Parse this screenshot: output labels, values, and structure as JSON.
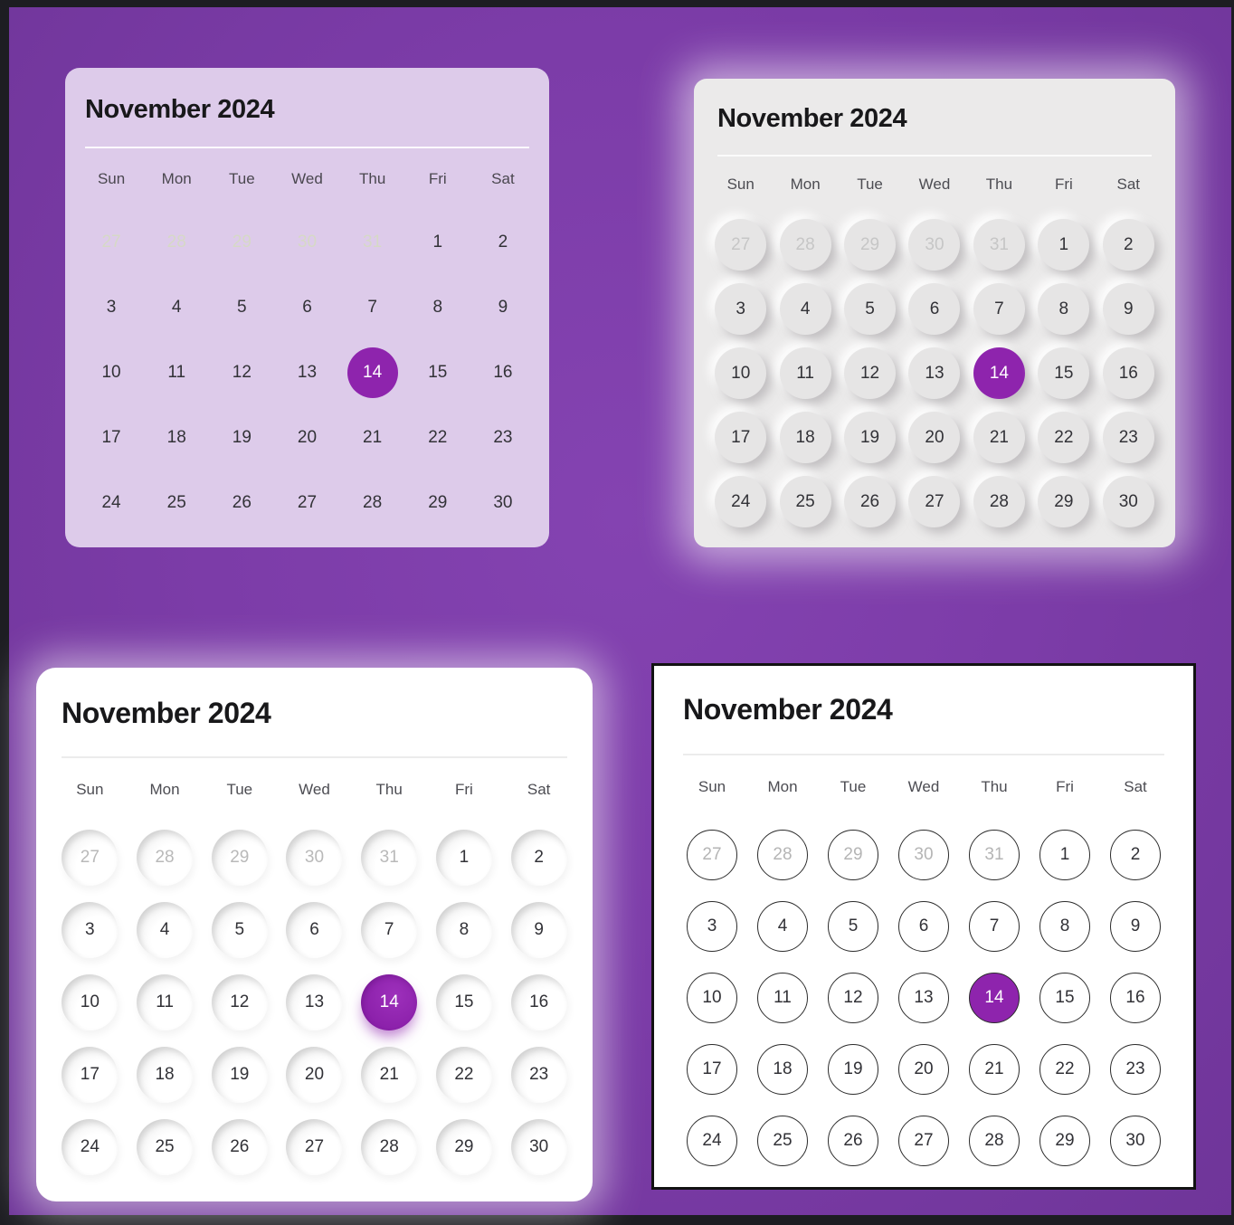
{
  "page": {
    "frame_color": "#1d1d22",
    "background_center": "#8443b1",
    "background_edge": "#6f3599",
    "accent_purple": "#8e24ad"
  },
  "calendar": {
    "title": "November 2024",
    "weekdays": [
      "Sun",
      "Mon",
      "Tue",
      "Wed",
      "Thu",
      "Fri",
      "Sat"
    ],
    "selected_day": "14",
    "days": [
      {
        "label": "27",
        "muted": true
      },
      {
        "label": "28",
        "muted": true
      },
      {
        "label": "29",
        "muted": true
      },
      {
        "label": "30",
        "muted": true
      },
      {
        "label": "31",
        "muted": true
      },
      {
        "label": "1"
      },
      {
        "label": "2"
      },
      {
        "label": "3"
      },
      {
        "label": "4"
      },
      {
        "label": "5"
      },
      {
        "label": "6"
      },
      {
        "label": "7"
      },
      {
        "label": "8"
      },
      {
        "label": "9"
      },
      {
        "label": "10"
      },
      {
        "label": "11"
      },
      {
        "label": "12"
      },
      {
        "label": "13"
      },
      {
        "label": "14",
        "selected": true
      },
      {
        "label": "15"
      },
      {
        "label": "16"
      },
      {
        "label": "17"
      },
      {
        "label": "18"
      },
      {
        "label": "19"
      },
      {
        "label": "20"
      },
      {
        "label": "21"
      },
      {
        "label": "22"
      },
      {
        "label": "23"
      },
      {
        "label": "24"
      },
      {
        "label": "25"
      },
      {
        "label": "26"
      },
      {
        "label": "27"
      },
      {
        "label": "28"
      },
      {
        "label": "29"
      },
      {
        "label": "30"
      }
    ]
  },
  "variants": [
    {
      "id": "flat-lavender",
      "card_bg": "#ddcbea"
    },
    {
      "id": "neumorphic-gray",
      "card_bg": "#ebeaea"
    },
    {
      "id": "neumorphic-white",
      "card_bg": "#ffffff"
    },
    {
      "id": "outlined",
      "card_bg": "#ffffff",
      "border_color": "#121212"
    }
  ]
}
